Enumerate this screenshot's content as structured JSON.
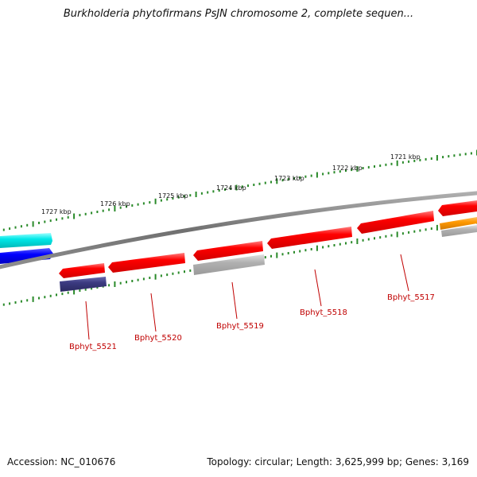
{
  "title": "Burkholderia phytofirmans PsJN chromosome 2, complete sequen...",
  "footer": {
    "accession": "Accession: NC_010676",
    "topology": "Topology: circular; Length: 3,625,999 bp; Genes: 3,169"
  },
  "scale_labels": [
    "1727 kbp",
    "1726 kbp",
    "1725 kbp",
    "1724 kbp",
    "1723 kbp",
    "1722 kbp",
    "1721 kbp"
  ],
  "gene_labels": [
    "Bphyt_5521",
    "Bphyt_5520",
    "Bphyt_5519",
    "Bphyt_5518",
    "Bphyt_5517"
  ],
  "colors": {
    "backbone": "#808080",
    "gene_red": "#ff0000",
    "gene_gray": "#b0b0b0",
    "gene_navy": "#3b3a80",
    "gene_blue": "#0000ff",
    "gene_cyan": "#00e0e0",
    "gene_orange": "#ff9900",
    "ticks": "#2a8a2a",
    "label_red": "#c00000"
  }
}
